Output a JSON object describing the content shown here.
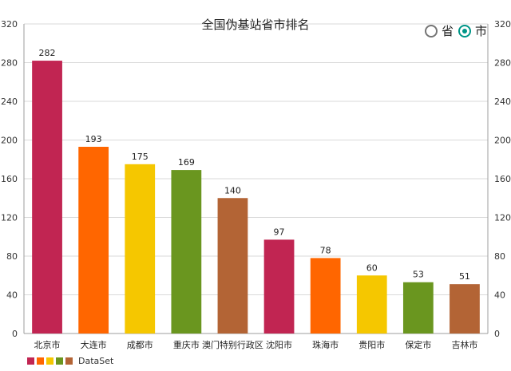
{
  "radio": {
    "option_province": "省",
    "option_city": "市",
    "selected": "市"
  },
  "chart_data": {
    "type": "bar",
    "title": "全国伪基站省市排名",
    "categories": [
      "北京市",
      "大连市",
      "成都市",
      "重庆市",
      "澳门特别行政区",
      "沈阳市",
      "珠海市",
      "贵阳市",
      "保定市",
      "吉林市"
    ],
    "values": [
      282,
      193,
      175,
      169,
      140,
      97,
      78,
      60,
      53,
      51
    ],
    "colors": [
      "#C12552",
      "#FF6600",
      "#F5C700",
      "#6A961F",
      "#B36435"
    ],
    "ylim": [
      0,
      320
    ],
    "yticks": [
      0,
      40,
      80,
      120,
      160,
      200,
      240,
      280,
      320
    ],
    "grid": true,
    "legend": {
      "label": "DataSet",
      "placement": "bottom-left"
    }
  }
}
